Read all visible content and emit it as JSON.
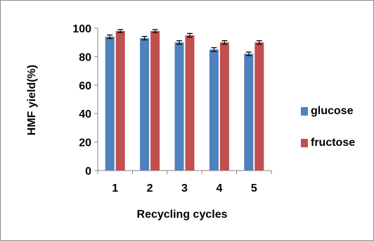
{
  "chart_data": {
    "type": "bar",
    "categories": [
      "1",
      "2",
      "3",
      "4",
      "5"
    ],
    "series": [
      {
        "name": "glucose",
        "values": [
          94,
          93,
          90,
          85,
          82
        ],
        "errors": [
          1.2,
          1.2,
          1.2,
          1.3,
          1.2
        ],
        "color": "#4F81BD"
      },
      {
        "name": "fructose",
        "values": [
          98,
          98,
          95,
          90,
          90
        ],
        "errors": [
          1.0,
          1.0,
          1.3,
          1.2,
          1.2
        ],
        "color": "#C0504D"
      }
    ],
    "title": "",
    "xlabel": "Recycling cycles",
    "ylabel": "HMF yield(%)",
    "ylim": [
      0,
      100
    ],
    "yticks": [
      0,
      20,
      40,
      60,
      80,
      100
    ],
    "grid": false,
    "legend_position": "right"
  }
}
